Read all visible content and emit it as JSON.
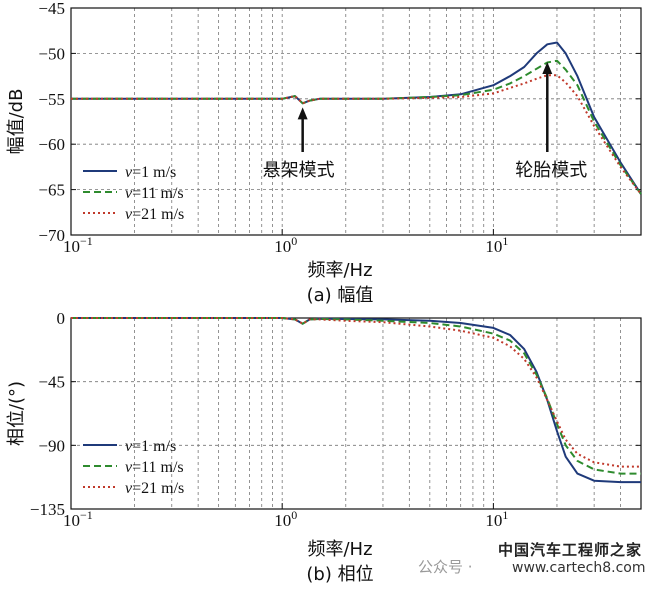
{
  "chart_data": [
    {
      "type": "line",
      "caption": "(a) 幅值",
      "xlabel": "频率/Hz",
      "ylabel": "幅值/dB",
      "xscale": "log",
      "xlim": [
        0.1,
        50
      ],
      "ylim": [
        -70,
        -45
      ],
      "xticks": [
        {
          "value": 0.1,
          "base": "10",
          "exp": "−1"
        },
        {
          "value": 1,
          "base": "10",
          "exp": "0"
        },
        {
          "value": 10,
          "base": "10",
          "exp": "1"
        }
      ],
      "yticks": [
        "−45",
        "−50",
        "−55",
        "−60",
        "−65",
        "−70"
      ],
      "grid": true,
      "legend_position": "bottom-left",
      "series": [
        {
          "name": "v=1 m/s",
          "color": "#1f3a7a",
          "dash": "solid",
          "x": [
            0.1,
            0.5,
            1.0,
            1.15,
            1.25,
            1.35,
            1.5,
            2,
            3,
            5,
            7,
            10,
            12,
            14,
            16,
            18,
            20,
            22,
            25,
            30,
            40,
            50
          ],
          "y": [
            -55,
            -55,
            -55,
            -54.7,
            -55.5,
            -55.2,
            -55,
            -55,
            -55,
            -54.8,
            -54.5,
            -53.5,
            -52.5,
            -51.5,
            -50,
            -49,
            -48.8,
            -50,
            -52.5,
            -57,
            -62,
            -65.5
          ]
        },
        {
          "name": "v=11 m/s",
          "color": "#2e8b2e",
          "dash": "dashed",
          "x": [
            0.1,
            0.5,
            1.0,
            1.15,
            1.25,
            1.35,
            1.5,
            2,
            3,
            5,
            7,
            10,
            12,
            14,
            16,
            18,
            20,
            22,
            25,
            30,
            40,
            50
          ],
          "y": [
            -55,
            -55,
            -55,
            -54.7,
            -55.5,
            -55.2,
            -55,
            -55,
            -55,
            -54.8,
            -54.6,
            -54,
            -53.3,
            -52.5,
            -51.7,
            -51,
            -50.8,
            -51.8,
            -53.5,
            -57.5,
            -62.3,
            -65.5
          ]
        },
        {
          "name": "v=21 m/s",
          "color": "#c0392b",
          "dash": "dotted",
          "x": [
            0.1,
            0.5,
            1.0,
            1.15,
            1.25,
            1.35,
            1.5,
            2,
            3,
            5,
            7,
            10,
            12,
            14,
            16,
            18,
            20,
            22,
            25,
            30,
            40,
            50
          ],
          "y": [
            -55,
            -55,
            -55,
            -54.7,
            -55.5,
            -55.2,
            -55,
            -55,
            -55,
            -54.9,
            -54.8,
            -54.4,
            -53.8,
            -53.3,
            -52.8,
            -52.4,
            -52.4,
            -53.2,
            -54.7,
            -58,
            -62.5,
            -65.5
          ]
        }
      ],
      "annotations": [
        {
          "text": "悬架模式",
          "x": 1.25,
          "y": -55.5
        },
        {
          "text": "轮胎模式",
          "x": 18,
          "y": -50.5
        }
      ]
    },
    {
      "type": "line",
      "caption": "(b) 相位",
      "xlabel": "频率/Hz",
      "ylabel": "相位/(°)",
      "xscale": "log",
      "xlim": [
        0.1,
        50
      ],
      "ylim": [
        -135,
        0
      ],
      "xticks": [
        {
          "value": 0.1,
          "base": "10",
          "exp": "−1"
        },
        {
          "value": 1,
          "base": "10",
          "exp": "0"
        },
        {
          "value": 10,
          "base": "10",
          "exp": "1"
        }
      ],
      "yticks": [
        "0",
        "−45",
        "−90",
        "−135"
      ],
      "grid": true,
      "legend_position": "bottom-left",
      "series": [
        {
          "name": "v=1 m/s",
          "color": "#1f3a7a",
          "dash": "solid",
          "x": [
            0.1,
            0.5,
            1.0,
            1.15,
            1.25,
            1.35,
            1.5,
            2,
            3,
            5,
            7,
            10,
            12,
            14,
            16,
            18,
            20,
            22,
            25,
            30,
            40,
            50
          ],
          "y": [
            0,
            0,
            0,
            -1,
            -4,
            -1,
            -0.5,
            -0.7,
            -1,
            -2,
            -3.5,
            -7,
            -12,
            -22,
            -38,
            -58,
            -80,
            -98,
            -110,
            -115,
            -116,
            -116
          ]
        },
        {
          "name": "v=11 m/s",
          "color": "#2e8b2e",
          "dash": "dashed",
          "x": [
            0.1,
            0.5,
            1.0,
            1.15,
            1.25,
            1.35,
            1.5,
            2,
            3,
            5,
            7,
            10,
            12,
            14,
            16,
            18,
            20,
            22,
            25,
            30,
            40,
            50
          ],
          "y": [
            0,
            0,
            0,
            -1,
            -4,
            -1,
            -0.7,
            -1,
            -2,
            -3.5,
            -6,
            -11,
            -16,
            -25,
            -40,
            -57,
            -75,
            -90,
            -101,
            -107,
            -110,
            -110
          ]
        },
        {
          "name": "v=21 m/s",
          "color": "#c0392b",
          "dash": "dotted",
          "x": [
            0.1,
            0.5,
            1.0,
            1.15,
            1.25,
            1.35,
            1.5,
            2,
            3,
            5,
            7,
            10,
            12,
            14,
            16,
            18,
            20,
            22,
            25,
            30,
            40,
            50
          ],
          "y": [
            0,
            0,
            0,
            -1,
            -4,
            -1,
            -1,
            -2,
            -3,
            -6,
            -9,
            -14,
            -20,
            -29,
            -42,
            -58,
            -73,
            -86,
            -96,
            -102,
            -105,
            -105
          ]
        }
      ],
      "annotations": []
    }
  ],
  "watermark": {
    "left_text": "公众号 ·",
    "brand_cn": "中国汽车工程师之家",
    "url": "www.cartech8.com"
  }
}
